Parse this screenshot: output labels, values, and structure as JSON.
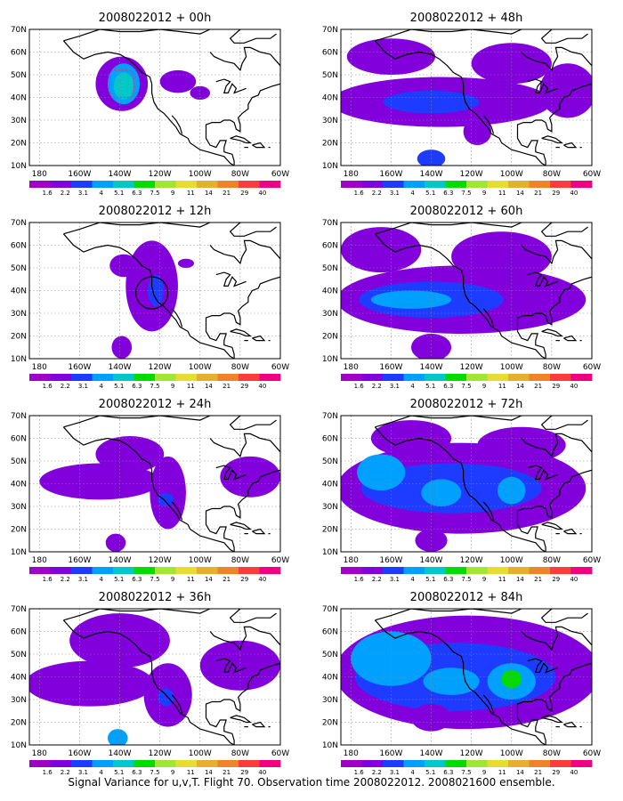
{
  "caption": "Signal Variance for u,v,T. Flight 70. Observation time 2008022012. 2008021600 ensemble.",
  "colorbar": {
    "labels": [
      "1.6",
      "2.2",
      "3.1",
      "4",
      "5.1",
      "6.3",
      "7.5",
      "9",
      "11",
      "14",
      "21",
      "29",
      "40"
    ],
    "colors": [
      "#a000c8",
      "#8200dc",
      "#1e3cff",
      "#00a0ff",
      "#00c8c8",
      "#00dc00",
      "#a0e632",
      "#e6dc32",
      "#e6af2d",
      "#f08228",
      "#fa3c3c",
      "#f00082"
    ]
  },
  "chart_data": [
    {
      "type": "heatmap",
      "title": "2008022012 + 00h",
      "lead_hours": 0,
      "xticks": [
        "180",
        "160W",
        "140W",
        "120W",
        "100W",
        "80W",
        "60W"
      ],
      "yticks": [
        "10N",
        "20N",
        "30N",
        "40N",
        "50N",
        "60N",
        "70N"
      ],
      "xlim": [
        -185,
        -60
      ],
      "ylim": [
        10,
        70
      ],
      "grid": true,
      "blobs": [
        {
          "lon": -139,
          "lat": 46,
          "rx": 13,
          "ry": 12,
          "level": 1
        },
        {
          "lon": -138,
          "lat": 46,
          "rx": 8,
          "ry": 9,
          "level": 3
        },
        {
          "lon": -138,
          "lat": 45,
          "rx": 5,
          "ry": 6,
          "level": 4
        },
        {
          "lon": -111,
          "lat": 47,
          "rx": 9,
          "ry": 5,
          "level": 1
        },
        {
          "lon": -100,
          "lat": 42,
          "rx": 5,
          "ry": 3,
          "level": 1
        }
      ],
      "region_box": {
        "lon_min": -145,
        "lon_max": -133,
        "lat_min": 40,
        "lat_max": 52
      }
    },
    {
      "type": "heatmap",
      "title": "2008022012 + 12h",
      "lead_hours": 12,
      "xticks": [
        "180",
        "160W",
        "140W",
        "120W",
        "100W",
        "80W",
        "60W"
      ],
      "yticks": [
        "10N",
        "20N",
        "30N",
        "40N",
        "50N",
        "60N",
        "70N"
      ],
      "xlim": [
        -185,
        -60
      ],
      "ylim": [
        10,
        70
      ],
      "grid": true,
      "blobs": [
        {
          "lon": -124,
          "lat": 42,
          "rx": 13,
          "ry": 20,
          "level": 1
        },
        {
          "lon": -138,
          "lat": 51,
          "rx": 7,
          "ry": 5,
          "level": 1
        },
        {
          "lon": -122,
          "lat": 40,
          "rx": 4,
          "ry": 7,
          "level": 2
        },
        {
          "lon": -139,
          "lat": 15,
          "rx": 5,
          "ry": 5,
          "level": 1
        },
        {
          "lon": -107,
          "lat": 52,
          "rx": 4,
          "ry": 2,
          "level": 1
        }
      ],
      "circle": {
        "lon": -124,
        "lat": 39,
        "r": 8
      }
    },
    {
      "type": "heatmap",
      "title": "2008022012 + 24h",
      "lead_hours": 24,
      "xticks": [
        "180",
        "160W",
        "140W",
        "120W",
        "100W",
        "80W",
        "60W"
      ],
      "yticks": [
        "10N",
        "20N",
        "30N",
        "40N",
        "50N",
        "60N",
        "70N"
      ],
      "xlim": [
        -185,
        -60
      ],
      "ylim": [
        10,
        70
      ],
      "grid": true,
      "blobs": [
        {
          "lon": -150,
          "lat": 41,
          "rx": 30,
          "ry": 8,
          "level": 1
        },
        {
          "lon": -135,
          "lat": 53,
          "rx": 17,
          "ry": 8,
          "level": 1
        },
        {
          "lon": -116,
          "lat": 36,
          "rx": 9,
          "ry": 16,
          "level": 1
        },
        {
          "lon": -75,
          "lat": 43,
          "rx": 15,
          "ry": 9,
          "level": 1
        },
        {
          "lon": -142,
          "lat": 14,
          "rx": 5,
          "ry": 4,
          "level": 1
        },
        {
          "lon": -117,
          "lat": 33,
          "rx": 4,
          "ry": 3,
          "level": 2
        }
      ]
    },
    {
      "type": "heatmap",
      "title": "2008022012 + 36h",
      "lead_hours": 36,
      "xticks": [
        "180",
        "160W",
        "140W",
        "120W",
        "100W",
        "80W",
        "60W"
      ],
      "yticks": [
        "10N",
        "20N",
        "30N",
        "40N",
        "50N",
        "60N",
        "70N"
      ],
      "xlim": [
        -185,
        -60
      ],
      "ylim": [
        10,
        70
      ],
      "grid": true,
      "blobs": [
        {
          "lon": -155,
          "lat": 37,
          "rx": 32,
          "ry": 10,
          "level": 1
        },
        {
          "lon": -140,
          "lat": 56,
          "rx": 25,
          "ry": 12,
          "level": 1
        },
        {
          "lon": -116,
          "lat": 32,
          "rx": 12,
          "ry": 14,
          "level": 1
        },
        {
          "lon": -80,
          "lat": 45,
          "rx": 20,
          "ry": 11,
          "level": 1
        },
        {
          "lon": -117,
          "lat": 31,
          "rx": 4,
          "ry": 4,
          "level": 2
        },
        {
          "lon": -141,
          "lat": 13,
          "rx": 5,
          "ry": 4,
          "level": 3
        }
      ]
    },
    {
      "type": "heatmap",
      "title": "2008022012 + 48h",
      "lead_hours": 48,
      "xticks": [
        "180",
        "160W",
        "140W",
        "120W",
        "100W",
        "80W",
        "60W"
      ],
      "yticks": [
        "10N",
        "20N",
        "30N",
        "40N",
        "50N",
        "60N",
        "70N"
      ],
      "xlim": [
        -185,
        -60
      ],
      "ylim": [
        10,
        70
      ],
      "grid": true,
      "blobs": [
        {
          "lon": -135,
          "lat": 38,
          "rx": 55,
          "ry": 11,
          "level": 1
        },
        {
          "lon": -160,
          "lat": 58,
          "rx": 22,
          "ry": 8,
          "level": 1
        },
        {
          "lon": -100,
          "lat": 55,
          "rx": 20,
          "ry": 9,
          "level": 1
        },
        {
          "lon": -72,
          "lat": 43,
          "rx": 14,
          "ry": 12,
          "level": 1
        },
        {
          "lon": -140,
          "lat": 38,
          "rx": 24,
          "ry": 5,
          "level": 2
        },
        {
          "lon": -140,
          "lat": 13,
          "rx": 7,
          "ry": 4,
          "level": 2
        },
        {
          "lon": -117,
          "lat": 25,
          "rx": 7,
          "ry": 6,
          "level": 1
        }
      ]
    },
    {
      "type": "heatmap",
      "title": "2008022012 + 60h",
      "lead_hours": 60,
      "xticks": [
        "180",
        "160W",
        "140W",
        "120W",
        "100W",
        "80W",
        "60W"
      ],
      "yticks": [
        "10N",
        "20N",
        "30N",
        "40N",
        "50N",
        "60N",
        "70N"
      ],
      "xlim": [
        -185,
        -60
      ],
      "ylim": [
        10,
        70
      ],
      "grid": true,
      "blobs": [
        {
          "lon": -125,
          "lat": 36,
          "rx": 62,
          "ry": 15,
          "level": 1
        },
        {
          "lon": -165,
          "lat": 58,
          "rx": 20,
          "ry": 10,
          "level": 1
        },
        {
          "lon": -105,
          "lat": 55,
          "rx": 25,
          "ry": 11,
          "level": 1
        },
        {
          "lon": -140,
          "lat": 36,
          "rx": 36,
          "ry": 8,
          "level": 2
        },
        {
          "lon": -150,
          "lat": 36,
          "rx": 20,
          "ry": 4,
          "level": 3
        },
        {
          "lon": -140,
          "lat": 15,
          "rx": 10,
          "ry": 6,
          "level": 1
        }
      ]
    },
    {
      "type": "heatmap",
      "title": "2008022012 + 72h",
      "lead_hours": 72,
      "xticks": [
        "180",
        "160W",
        "140W",
        "120W",
        "100W",
        "80W",
        "60W"
      ],
      "yticks": [
        "10N",
        "20N",
        "30N",
        "40N",
        "50N",
        "60N",
        "70N"
      ],
      "xlim": [
        -185,
        -60
      ],
      "ylim": [
        10,
        70
      ],
      "grid": true,
      "blobs": [
        {
          "lon": -125,
          "lat": 38,
          "rx": 62,
          "ry": 20,
          "level": 1
        },
        {
          "lon": -150,
          "lat": 60,
          "rx": 20,
          "ry": 8,
          "level": 1
        },
        {
          "lon": -95,
          "lat": 57,
          "rx": 22,
          "ry": 8,
          "level": 1
        },
        {
          "lon": -130,
          "lat": 38,
          "rx": 45,
          "ry": 11,
          "level": 2
        },
        {
          "lon": -165,
          "lat": 45,
          "rx": 12,
          "ry": 8,
          "level": 3
        },
        {
          "lon": -135,
          "lat": 36,
          "rx": 10,
          "ry": 6,
          "level": 3
        },
        {
          "lon": -100,
          "lat": 37,
          "rx": 7,
          "ry": 6,
          "level": 3
        },
        {
          "lon": -140,
          "lat": 15,
          "rx": 8,
          "ry": 5,
          "level": 1
        }
      ]
    },
    {
      "type": "heatmap",
      "title": "2008022012 + 84h",
      "lead_hours": 84,
      "xticks": [
        "180",
        "160W",
        "140W",
        "120W",
        "100W",
        "80W",
        "60W"
      ],
      "yticks": [
        "10N",
        "20N",
        "30N",
        "40N",
        "50N",
        "60N",
        "70N"
      ],
      "xlim": [
        -185,
        -60
      ],
      "ylim": [
        10,
        70
      ],
      "grid": true,
      "blobs": [
        {
          "lon": -122,
          "lat": 42,
          "rx": 66,
          "ry": 25,
          "level": 1
        },
        {
          "lon": -128,
          "lat": 40,
          "rx": 50,
          "ry": 15,
          "level": 2
        },
        {
          "lon": -160,
          "lat": 48,
          "rx": 20,
          "ry": 12,
          "level": 3
        },
        {
          "lon": -130,
          "lat": 38,
          "rx": 14,
          "ry": 6,
          "level": 3
        },
        {
          "lon": -100,
          "lat": 38,
          "rx": 12,
          "ry": 8,
          "level": 3
        },
        {
          "lon": -100,
          "lat": 39,
          "rx": 5,
          "ry": 4,
          "level": 5
        },
        {
          "lon": -140,
          "lat": 22,
          "rx": 10,
          "ry": 6,
          "level": 1
        }
      ]
    }
  ]
}
